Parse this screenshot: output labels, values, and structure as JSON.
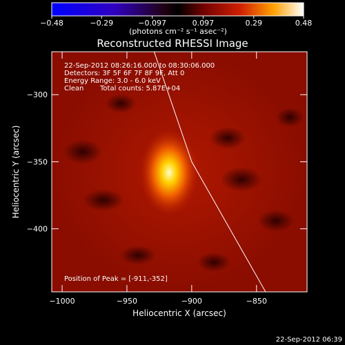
{
  "chart_data": {
    "type": "heatmap",
    "title": "Reconstructed RHESSI Image",
    "xlabel": "Heliocentric X (arcsec)",
    "ylabel": "Heliocentric Y (arcsec)",
    "xlim": [
      -1008,
      -811
    ],
    "ylim": [
      -447,
      -268
    ],
    "xticks": [
      -1000,
      -950,
      -900,
      -850
    ],
    "yticks": [
      -300,
      -350,
      -400
    ],
    "x_tick_labels": [
      "−1000",
      "−950",
      "−900",
      "−850"
    ],
    "y_tick_labels": [
      "−300",
      "−350",
      "−400"
    ],
    "colorbar": {
      "range": [
        -0.48,
        0.48
      ],
      "ticks": [
        -0.48,
        -0.29,
        -0.097,
        0.097,
        0.29,
        0.48
      ],
      "tick_labels": [
        "−0.48",
        "−0.29",
        "−0.097",
        "0.097",
        "0.29",
        "0.48"
      ],
      "unit_label": "(photons cm⁻² s⁻¹ asec⁻²)"
    },
    "peak": {
      "x": -911,
      "y": -352,
      "value": 0.48
    },
    "limb": [
      [
        -929,
        -268
      ],
      [
        -900,
        -350
      ],
      [
        -843,
        -447
      ]
    ],
    "annotations": {
      "time_range": "22-Sep-2012 08:26:16.000 to 08:30:06.000",
      "detectors": "Detectors: 3F 5F 6F 7F 8F 9F, Att 0",
      "energy": "Energy Range: 3.0 - 6.0 keV",
      "method": "Clean",
      "counts": "Total counts: 5.87E+04",
      "peak_text": "Position of Peak = [-911,-352]"
    }
  },
  "footer": {
    "timestamp": "22-Sep-2012 06:39"
  },
  "colors": {
    "low": "#0000ff",
    "mid": "#000000",
    "high": "#ffffff",
    "background": "#000000"
  }
}
